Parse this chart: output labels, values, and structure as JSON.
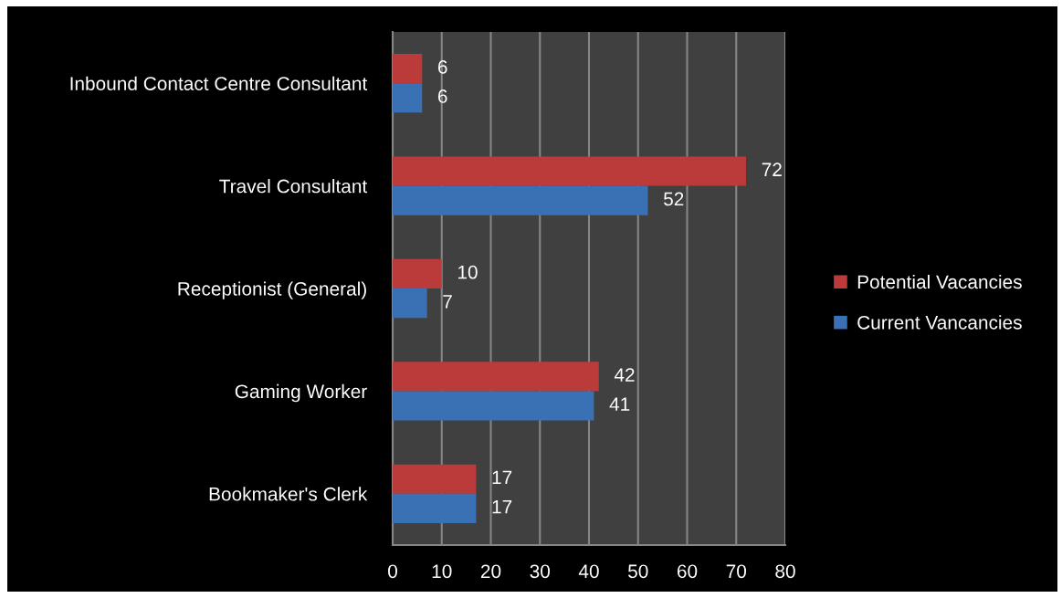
{
  "chart_data": {
    "type": "bar",
    "orientation": "horizontal",
    "categories": [
      "Inbound Contact Centre Consultant",
      "Travel Consultant",
      "Receptionist (General)",
      "Gaming Worker",
      "Bookmaker's Clerk"
    ],
    "series": [
      {
        "name": "Potential Vacancies",
        "color": "#bb3b3b",
        "values": [
          6,
          72,
          10,
          42,
          17
        ]
      },
      {
        "name": "Current Vancancies",
        "color": "#3a71b5",
        "values": [
          6,
          52,
          7,
          41,
          17
        ]
      }
    ],
    "xlim": [
      0,
      80
    ],
    "xticks": [
      0,
      10,
      20,
      30,
      40,
      50,
      60,
      70,
      80
    ],
    "grid": "x",
    "legend": "right",
    "data_labels": true
  }
}
